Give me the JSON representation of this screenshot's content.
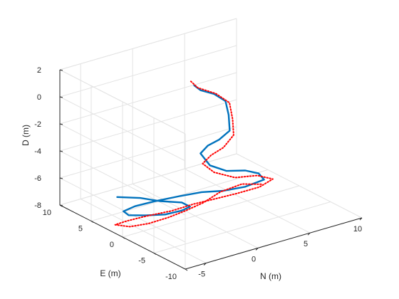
{
  "chart_data": {
    "type": "line",
    "projection": "3d",
    "title": "",
    "xlabel": "N (m)",
    "ylabel": "E (m)",
    "zlabel": "D (m)",
    "xlim": [
      -7,
      10
    ],
    "ylim": [
      -10,
      10
    ],
    "zlim": [
      -8,
      2
    ],
    "xticks": [
      -5,
      0,
      5,
      10
    ],
    "yticks": [
      -10,
      -5,
      0,
      5,
      10
    ],
    "zticks": [
      -8,
      -6,
      -4,
      -2,
      0,
      2
    ],
    "grid": true,
    "legend": "none",
    "series": [
      {
        "style": "solid",
        "color": "#0072BD",
        "points": [
          [
            0.5,
            1,
            1.3
          ],
          [
            0.8,
            0.5,
            1.0
          ],
          [
            1.5,
            -0.5,
            0.8
          ],
          [
            2.0,
            -1.5,
            0.4
          ],
          [
            2.0,
            -2.0,
            -0.5
          ],
          [
            1.8,
            -2.5,
            -1.5
          ],
          [
            1.2,
            -1.8,
            -2.2
          ],
          [
            0.6,
            -1.0,
            -2.7
          ],
          [
            0.2,
            -0.5,
            -3.3
          ],
          [
            0.8,
            -1.0,
            -4.2
          ],
          [
            1.8,
            -2.0,
            -4.6
          ],
          [
            3.0,
            -3.0,
            -4.6
          ],
          [
            3.8,
            -3.8,
            -4.8
          ],
          [
            4.2,
            -4.0,
            -5.3
          ],
          [
            3.0,
            -3.0,
            -5.8
          ],
          [
            1.5,
            -2.0,
            -6.0
          ],
          [
            0.0,
            -1.0,
            -6.0
          ],
          [
            -1.5,
            0.0,
            -6.2
          ],
          [
            -3.0,
            1.5,
            -6.6
          ],
          [
            -4.0,
            3.0,
            -7.1
          ],
          [
            -4.5,
            4.0,
            -7.6
          ],
          [
            -4.0,
            4.0,
            -8.0
          ],
          [
            -3.0,
            3.0,
            -8.0
          ],
          [
            -2.0,
            1.5,
            -7.8
          ],
          [
            -1.0,
            0.5,
            -7.5
          ],
          [
            -0.5,
            0.0,
            -7.2
          ],
          [
            -1.0,
            0.5,
            -6.9
          ],
          [
            -2.5,
            1.5,
            -6.7
          ],
          [
            -3.5,
            3.0,
            -6.6
          ],
          [
            -4.8,
            4.5,
            -6.6
          ]
        ]
      },
      {
        "style": "dotted",
        "color": "#FF0000",
        "points": [
          [
            0.3,
            1.2,
            1.6
          ],
          [
            0.6,
            0.6,
            1.2
          ],
          [
            1.5,
            -0.8,
            0.9
          ],
          [
            2.2,
            -1.8,
            0.3
          ],
          [
            2.2,
            -2.3,
            -0.8
          ],
          [
            2.0,
            -2.8,
            -1.8
          ],
          [
            1.5,
            -2.0,
            -2.8
          ],
          [
            0.8,
            -1.2,
            -3.4
          ],
          [
            0.4,
            -0.5,
            -4.1
          ],
          [
            1.2,
            -1.0,
            -4.8
          ],
          [
            2.5,
            -2.2,
            -5.2
          ],
          [
            3.8,
            -3.6,
            -5.0
          ],
          [
            4.8,
            -4.4,
            -5.3
          ],
          [
            4.0,
            -3.6,
            -5.9
          ],
          [
            2.5,
            -2.5,
            -6.3
          ],
          [
            1.0,
            -1.5,
            -6.6
          ],
          [
            -0.5,
            -0.5,
            -6.9
          ],
          [
            -2.0,
            0.5,
            -7.3
          ],
          [
            -3.5,
            2.0,
            -7.7
          ],
          [
            -4.5,
            3.5,
            -8.2
          ],
          [
            -5.0,
            4.5,
            -8.6
          ],
          [
            -4.0,
            3.8,
            -8.8
          ],
          [
            -2.8,
            2.8,
            -8.6
          ],
          [
            -1.5,
            1.8,
            -8.2
          ],
          [
            -0.5,
            0.8,
            -7.7
          ],
          [
            0.5,
            -0.5,
            -7.0
          ],
          [
            1.5,
            -1.5,
            -6.2
          ],
          [
            2.8,
            -2.8,
            -5.6
          ],
          [
            4.0,
            -4.0,
            -5.6
          ]
        ]
      }
    ]
  }
}
